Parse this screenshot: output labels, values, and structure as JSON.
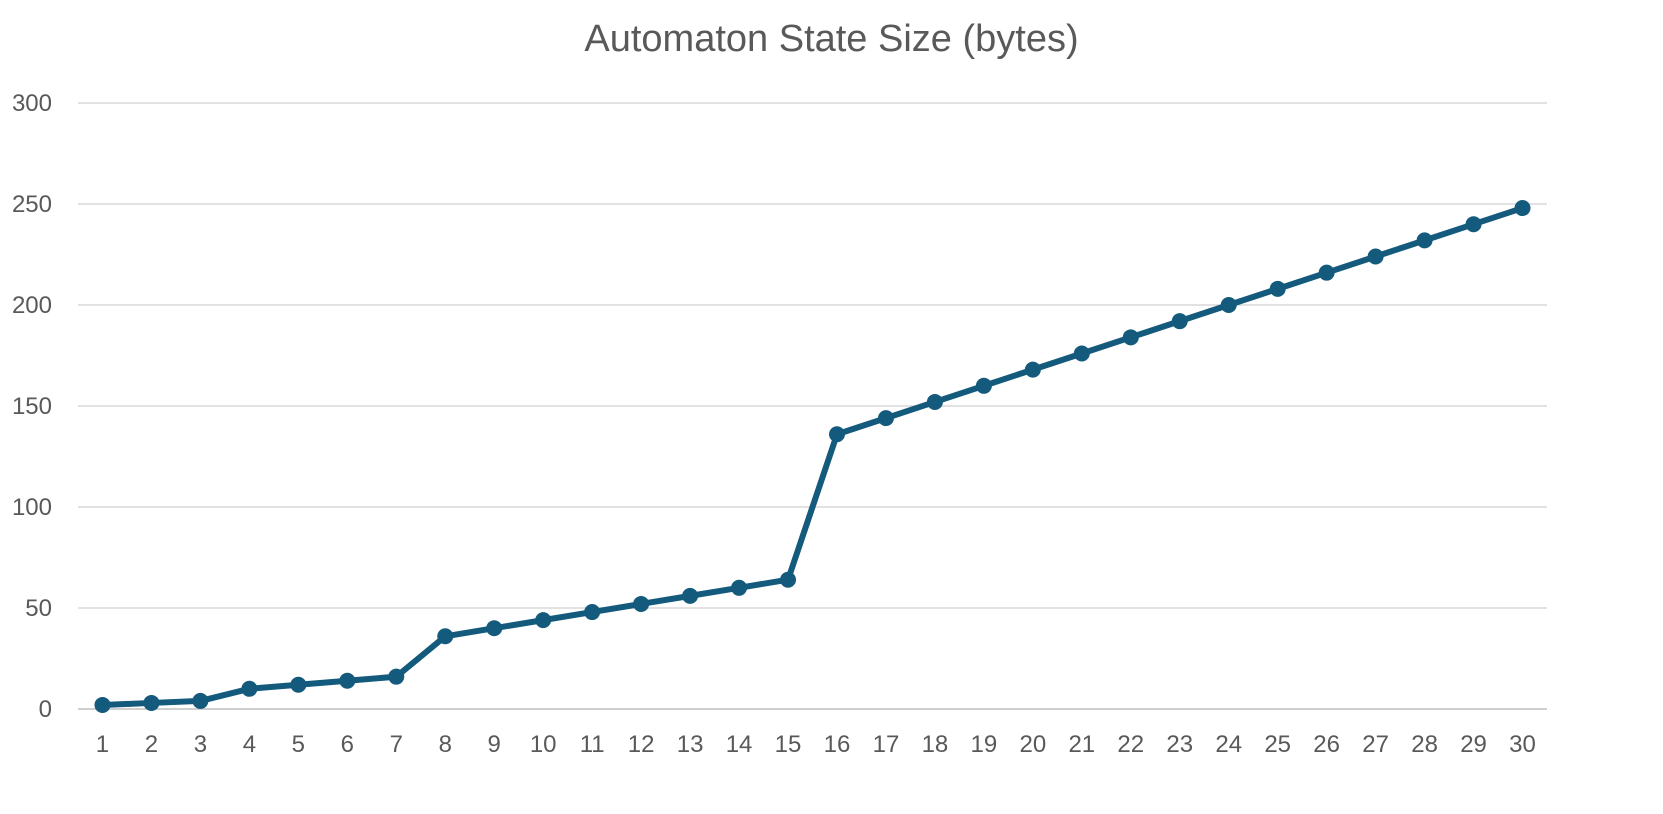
{
  "chart_data": {
    "type": "line",
    "title": "Automaton State Size (bytes)",
    "xlabel": "",
    "ylabel": "",
    "categories": [
      "1",
      "2",
      "3",
      "4",
      "5",
      "6",
      "7",
      "8",
      "9",
      "10",
      "11",
      "12",
      "13",
      "14",
      "15",
      "16",
      "17",
      "18",
      "19",
      "20",
      "21",
      "22",
      "23",
      "24",
      "25",
      "26",
      "27",
      "28",
      "29",
      "30"
    ],
    "series": [
      {
        "values": [
          2,
          3,
          4,
          10,
          12,
          14,
          16,
          36,
          40,
          44,
          48,
          52,
          56,
          60,
          64,
          136,
          144,
          152,
          160,
          168,
          176,
          184,
          192,
          200,
          208,
          216,
          224,
          232,
          240,
          248
        ],
        "color": "#145a7c"
      }
    ],
    "ylim": [
      0,
      300
    ],
    "yticks": [
      0,
      50,
      100,
      150,
      200,
      250,
      300
    ],
    "grid": true,
    "legend": "none"
  }
}
